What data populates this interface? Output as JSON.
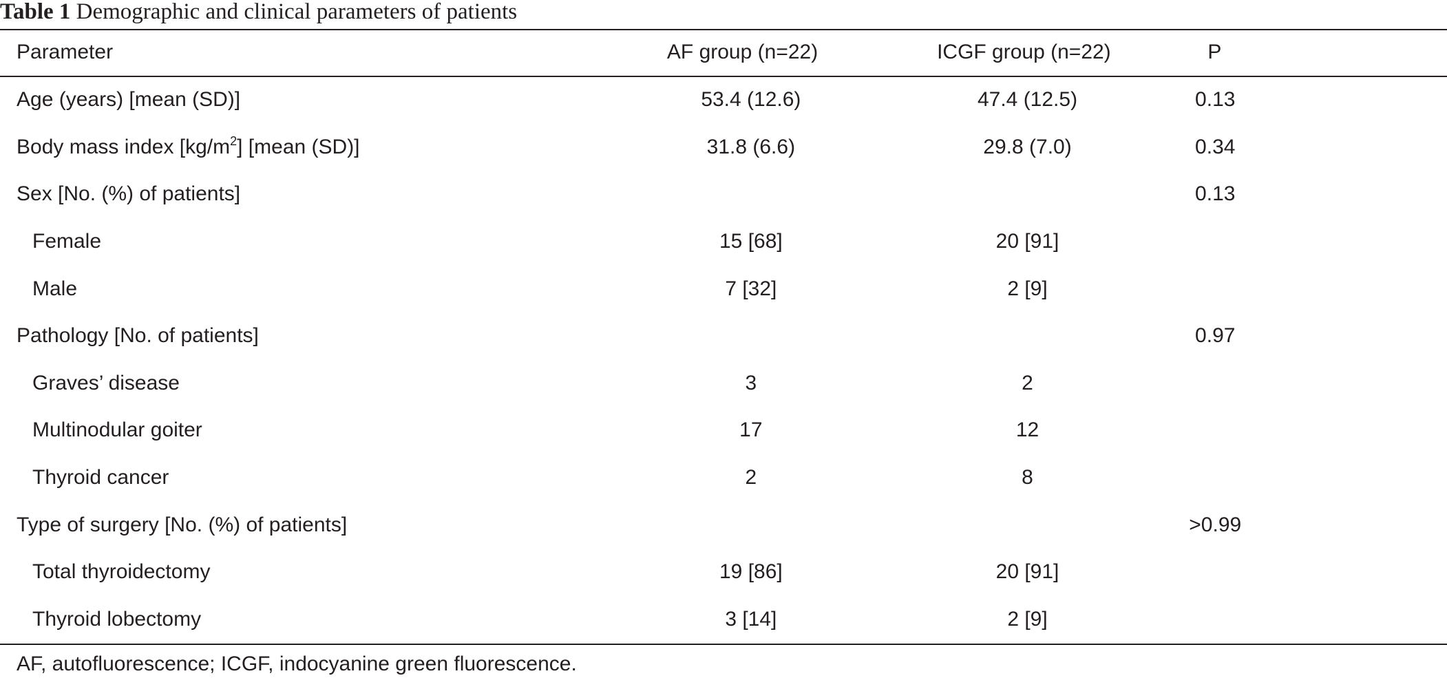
{
  "caption": {
    "label": "Table 1",
    "text": "Demographic and clinical parameters of patients"
  },
  "table": {
    "headers": [
      "Parameter",
      "AF group (n=22)",
      "ICGF group (n=22)",
      "P"
    ],
    "rows": [
      {
        "parameter": "Age (years) [mean (SD)]",
        "af": "53.4 (12.6)",
        "icgf": "47.4 (12.5)",
        "p": "0.13"
      },
      {
        "parameter_pre": "Body mass index [kg/m",
        "parameter_sup": "2",
        "parameter_post": "] [mean (SD)]",
        "af": "31.8 (6.6)",
        "icgf": "29.8 (7.0)",
        "p": "0.34"
      },
      {
        "parameter": "Sex [No. (%) of patients]",
        "af": "",
        "icgf": "",
        "p": "0.13"
      },
      {
        "parameter": "Female",
        "af": "15 [68]",
        "icgf": "20 [91]",
        "p": ""
      },
      {
        "parameter": "Male",
        "af": "7 [32]",
        "icgf": "2 [9]",
        "p": ""
      },
      {
        "parameter": "Pathology [No. of patients]",
        "af": "",
        "icgf": "",
        "p": "0.97"
      },
      {
        "parameter": "Graves’ disease",
        "af": "3",
        "icgf": "2",
        "p": ""
      },
      {
        "parameter": "Multinodular goiter",
        "af": "17",
        "icgf": "12",
        "p": ""
      },
      {
        "parameter": "Thyroid cancer",
        "af": "2",
        "icgf": "8",
        "p": ""
      },
      {
        "parameter": "Type of surgery [No. (%) of patients]",
        "af": "",
        "icgf": "",
        "p": ">0.99"
      },
      {
        "parameter": "Total thyroidectomy",
        "af": "19 [86]",
        "icgf": "20 [91]",
        "p": ""
      },
      {
        "parameter": "Thyroid lobectomy",
        "af": "3 [14]",
        "icgf": "2 [9]",
        "p": ""
      }
    ]
  },
  "footnote": "AF, autofluorescence; ICGF, indocyanine green fluorescence."
}
